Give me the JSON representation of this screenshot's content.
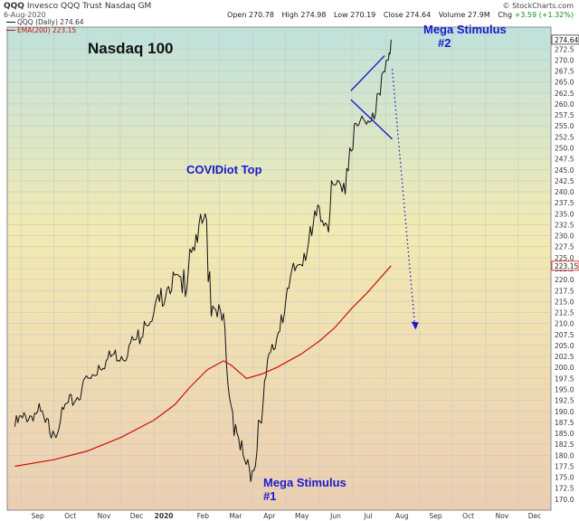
{
  "header": {
    "symbol": "QQQ",
    "description": "Invesco QQQ Trust Nasdaq GM",
    "date": "6-Aug-2020",
    "brand": "© StockCharts.com",
    "open_label": "Open",
    "open": "270.78",
    "high_label": "High",
    "high": "274.98",
    "low_label": "Low",
    "low": "270.19",
    "close_label": "Close",
    "close": "274.64",
    "volume_label": "Volume",
    "volume": "27.9M",
    "chg_label": "Chg",
    "chg": "+3.59 (+1.32%)"
  },
  "legend": {
    "price_label": "QQQ (Daily) 274.64",
    "ema_label": "EMA(200) 223.15"
  },
  "annotations": {
    "title": "Nasdaq 100",
    "covid_top": "COVIDiot Top",
    "mega1_line1": "Mega Stimulus",
    "mega1_line2": "#1",
    "mega2_line1": "Mega Stimulus",
    "mega2_line2": "#2"
  },
  "colors": {
    "price": "#111111",
    "ema": "#cc1111",
    "annotation": "#1a1acc",
    "grid": "#c8c8c8",
    "bg_top": "#bfe2dc",
    "bg_mid": "#f2eab2",
    "bg_bottom": "#ecceb2"
  },
  "chart_data": {
    "type": "line",
    "title": "Nasdaq 100",
    "ylim": [
      167.5,
      277.5
    ],
    "y_ticks": [
      170,
      172.5,
      175,
      177.5,
      180,
      182.5,
      185,
      187.5,
      190,
      192.5,
      195,
      197.5,
      200,
      202.5,
      205,
      207.5,
      210,
      212.5,
      215,
      217.5,
      220,
      222.5,
      225,
      227.5,
      230,
      232.5,
      235,
      237.5,
      240,
      242.5,
      245,
      247.5,
      250,
      252.5,
      255,
      257.5,
      260,
      262.5,
      265,
      267.5,
      270,
      272.5
    ],
    "x_ticks": [
      "Sep",
      "Oct",
      "Nov",
      "Dec",
      "2020",
      "Feb",
      "Mar",
      "Apr",
      "May",
      "Jun",
      "Jul",
      "Aug",
      "Sep",
      "Oct",
      "Nov",
      "Dec"
    ],
    "price_tag": "274.64",
    "ema_tag": "223.15",
    "series": [
      {
        "name": "QQQ (Daily) 274.64",
        "x": [
          "2019-08-26",
          "2019-09-02",
          "2019-09-09",
          "2019-09-16",
          "2019-09-23",
          "2019-09-30",
          "2019-10-07",
          "2019-10-14",
          "2019-10-21",
          "2019-10-28",
          "2019-11-04",
          "2019-11-11",
          "2019-11-18",
          "2019-11-25",
          "2019-12-02",
          "2019-12-09",
          "2019-12-16",
          "2019-12-23",
          "2019-12-30",
          "2020-01-06",
          "2020-01-13",
          "2020-01-20",
          "2020-01-27",
          "2020-02-03",
          "2020-02-10",
          "2020-02-17",
          "2020-02-24",
          "2020-03-02",
          "2020-03-09",
          "2020-03-16",
          "2020-03-23",
          "2020-03-30",
          "2020-04-06",
          "2020-04-13",
          "2020-04-20",
          "2020-04-27",
          "2020-05-04",
          "2020-05-11",
          "2020-05-18",
          "2020-05-25",
          "2020-06-01",
          "2020-06-08",
          "2020-06-15",
          "2020-06-22",
          "2020-06-29",
          "2020-07-06",
          "2020-07-13",
          "2020-07-20",
          "2020-07-27",
          "2020-08-03",
          "2020-08-06"
        ],
        "y": [
          186.5,
          188.5,
          189,
          190,
          187.5,
          185.5,
          188,
          192,
          192.5,
          197,
          197.5,
          200.5,
          201.5,
          203,
          202.5,
          205,
          206.5,
          210.5,
          210.5,
          215,
          218,
          221,
          217,
          227,
          228.5,
          235,
          214,
          213,
          196,
          187,
          180,
          174,
          188,
          198,
          204,
          212,
          218,
          223,
          226,
          230,
          236.5,
          232.5,
          241.5,
          240,
          250,
          255,
          256,
          258,
          262,
          270,
          274.64
        ]
      },
      {
        "name": "EMA(200) 223.15",
        "x": [
          "2019-08-26",
          "2019-10-01",
          "2019-11-01",
          "2019-12-01",
          "2020-01-01",
          "2020-01-20",
          "2020-02-03",
          "2020-02-19",
          "2020-03-05",
          "2020-03-12",
          "2020-03-26",
          "2020-04-09",
          "2020-04-23",
          "2020-05-15",
          "2020-06-01",
          "2020-06-15",
          "2020-07-01",
          "2020-07-15",
          "2020-08-06"
        ],
        "y": [
          177.5,
          179,
          181,
          184,
          188,
          191.5,
          195.5,
          199.5,
          201.5,
          200.5,
          197.5,
          198.5,
          200,
          203,
          206,
          209,
          213.5,
          217,
          223.15
        ]
      }
    ],
    "overlays": {
      "flag_upper": {
        "from": [
          "2020-06-30",
          263
        ],
        "to": [
          "2020-07-31",
          271
        ]
      },
      "flag_lower": {
        "from": [
          "2020-06-30",
          261
        ],
        "to": [
          "2020-08-07",
          252
        ]
      },
      "projection": {
        "from": [
          "2020-08-07",
          268
        ],
        "to": [
          "2020-08-28",
          209
        ]
      }
    }
  }
}
